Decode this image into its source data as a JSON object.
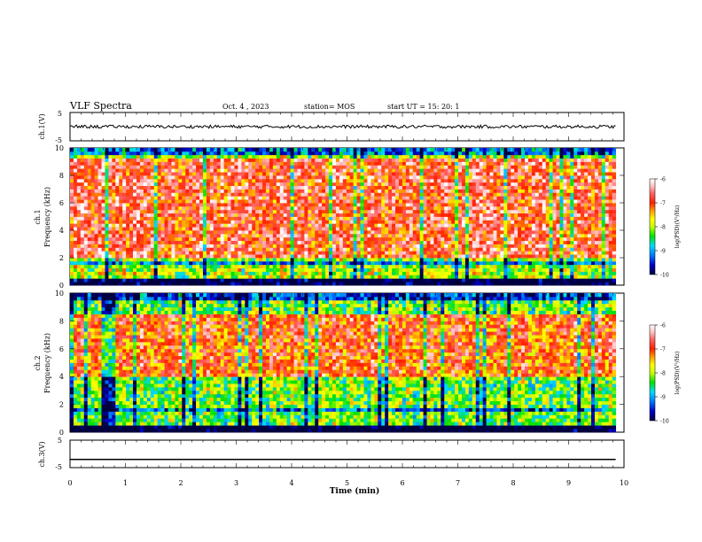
{
  "header": {
    "title": "VLF Spectra",
    "date": "Oct. 4 , 2023",
    "station": "station= MOS",
    "start": "start UT =   15: 20: 1"
  },
  "chart_data": [
    {
      "type": "line",
      "panel": "ch1-waveform",
      "ylabel": "ch.1(V)",
      "ylim": [
        -5,
        5
      ],
      "y_ticks": [
        "5",
        "-5"
      ],
      "xlim": [
        0,
        10
      ],
      "series": [
        {
          "values_note": "",
          "values": [
            0.0
          ]
        }
      ]
    },
    {
      "type": "heatmap",
      "panel": "ch1-spectrogram",
      "ylabel": "ch.1\nFrequency (kHz)",
      "ylabel_top": "ch.1",
      "ylabel_bottom": "Frequency (kHz)",
      "ylim": [
        0,
        10
      ],
      "y_ticks": [
        "0",
        "2",
        "4",
        "6",
        "8",
        "10"
      ],
      "xlim": [
        0,
        9.85
      ],
      "colorbar": {
        "label": "log(PSD)(V²/Hz)",
        "range": [
          -10,
          -6
        ],
        "ticks": [
          "-6",
          "-7",
          "-8",
          "-9",
          "-10"
        ]
      },
      "peak_band_khz": [
        2,
        9.2
      ],
      "base_level": -7.4
    },
    {
      "type": "heatmap",
      "panel": "ch2-spectrogram",
      "ylabel": "ch.2\nFrequency (kHz)",
      "ylabel_top": "ch.2",
      "ylabel_bottom": "Frequency (kHz)",
      "ylim": [
        0,
        10
      ],
      "y_ticks": [
        "0",
        "2",
        "4",
        "6",
        "8",
        "10"
      ],
      "xlim": [
        0,
        9.85
      ],
      "colorbar": {
        "label": "log(PSD)(V²/Hz)",
        "range": [
          -10,
          -6
        ],
        "ticks": [
          "-6",
          "-7",
          "-8",
          "-9",
          "-10"
        ]
      },
      "peak_band_khz": [
        4,
        8.5
      ],
      "base_level": -7.6
    },
    {
      "type": "line",
      "panel": "ch3-waveform",
      "ylabel": "ch.3(V)",
      "ylim": [
        -5,
        5
      ],
      "y_ticks": [
        "5",
        "-5"
      ],
      "xlim": [
        0,
        10
      ],
      "series": [
        {
          "values": [
            -2.0
          ]
        }
      ]
    }
  ],
  "xaxis": {
    "label": "Time (min)",
    "ticks": [
      "0",
      "1",
      "2",
      "3",
      "4",
      "5",
      "6",
      "7",
      "8",
      "9",
      "10"
    ]
  },
  "colors": {
    "scale": [
      "#000040",
      "#0000c8",
      "#0078ff",
      "#00dcff",
      "#00e000",
      "#c8ff00",
      "#ffff00",
      "#ffa500",
      "#ff2000",
      "#ff6464",
      "#ffc8c8",
      "#ffffff"
    ]
  }
}
